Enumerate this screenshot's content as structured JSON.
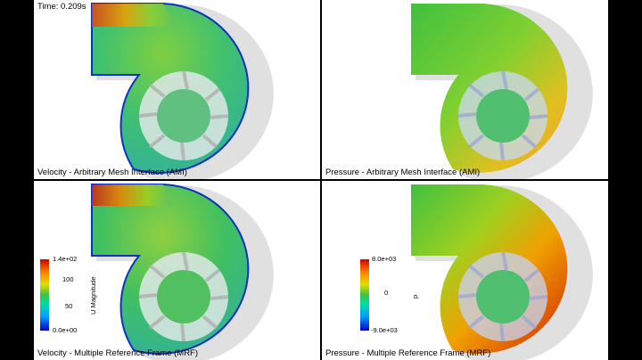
{
  "time_label": "Time: 0.209s",
  "panels": {
    "top_left": {
      "caption": "Velocity - Arbitrary Mesh Interface (AMI)"
    },
    "top_right": {
      "caption": "Pressure - Arbitrary Mesh Interface (AMI)"
    },
    "bottom_left": {
      "caption": "Velocity - Multiple Reference Frame (MRF)"
    },
    "bottom_right": {
      "caption": "Pressure - Multiple Reference Frame (MRF)"
    }
  },
  "velocity_legend": {
    "title": "U Magnitude",
    "max": "1.4e+02",
    "mid_high": "100",
    "mid_low": "50",
    "min": "0.0e+00"
  },
  "pressure_legend": {
    "title": "p",
    "max": "8.0e+03",
    "mid": "0",
    "min": "-9.0e+03"
  },
  "colors": {
    "rainbow": [
      "#0000cc",
      "#00a0ff",
      "#00e0a0",
      "#40c040",
      "#e0e000",
      "#ff8000",
      "#d00000"
    ]
  }
}
